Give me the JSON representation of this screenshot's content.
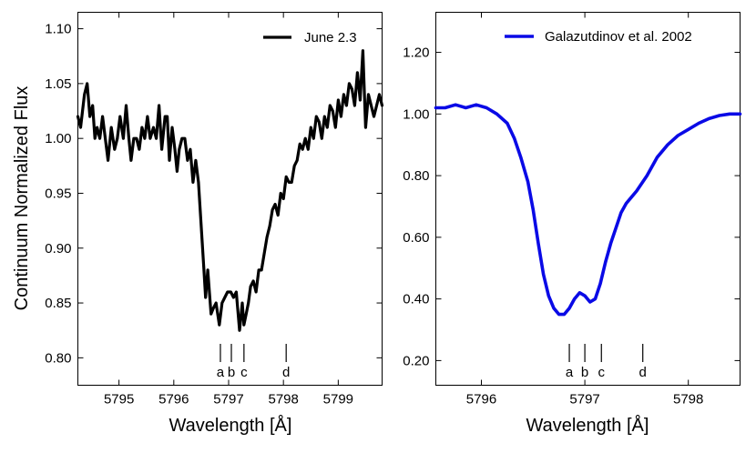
{
  "chart_data": [
    {
      "type": "line",
      "panel": "left",
      "xlabel": "Wavelength [Å]",
      "ylabel": "Continuum Normalized Flux",
      "xlim": [
        5794.25,
        5799.8
      ],
      "ylim": [
        0.775,
        1.115
      ],
      "xticks": [
        5795,
        5796,
        5797,
        5798,
        5799
      ],
      "xtick_labels": [
        "5795",
        "5796",
        "5797",
        "5798",
        "5799"
      ],
      "yticks": [
        0.8,
        0.85,
        0.9,
        0.95,
        1.0,
        1.05,
        1.1
      ],
      "ytick_labels": [
        "0.80",
        "0.85",
        "0.90",
        "0.95",
        "1.00",
        "1.05",
        "1.10"
      ],
      "legend": {
        "label": "June 2.3",
        "color": "#000000",
        "position": "top-right"
      },
      "series": [
        {
          "name": "June 2.3",
          "color": "#000000",
          "x": [
            5794.25,
            5794.3,
            5794.37,
            5794.42,
            5794.47,
            5794.52,
            5794.56,
            5794.6,
            5794.65,
            5794.7,
            5794.75,
            5794.8,
            5794.86,
            5794.92,
            5794.97,
            5795.02,
            5795.08,
            5795.13,
            5795.18,
            5795.22,
            5795.27,
            5795.32,
            5795.37,
            5795.42,
            5795.47,
            5795.52,
            5795.57,
            5795.63,
            5795.68,
            5795.73,
            5795.78,
            5795.84,
            5795.88,
            5795.92,
            5795.97,
            5796.02,
            5796.06,
            5796.1,
            5796.15,
            5796.2,
            5796.25,
            5796.3,
            5796.35,
            5796.4,
            5796.45,
            5796.5,
            5796.55,
            5796.58,
            5796.62,
            5796.65,
            5796.68,
            5796.72,
            5796.77,
            5796.83,
            5796.88,
            5796.93,
            5796.98,
            5797.04,
            5797.09,
            5797.14,
            5797.2,
            5797.25,
            5797.28,
            5797.32,
            5797.36,
            5797.4,
            5797.45,
            5797.5,
            5797.55,
            5797.6,
            5797.65,
            5797.7,
            5797.75,
            5797.8,
            5797.85,
            5797.9,
            5797.95,
            5798.0,
            5798.05,
            5798.1,
            5798.15,
            5798.2,
            5798.25,
            5798.3,
            5798.35,
            5798.4,
            5798.45,
            5798.5,
            5798.55,
            5798.6,
            5798.65,
            5798.7,
            5798.75,
            5798.8,
            5798.85,
            5798.9,
            5798.95,
            5799.0,
            5799.05,
            5799.1,
            5799.15,
            5799.2,
            5799.25,
            5799.3,
            5799.35,
            5799.4,
            5799.45,
            5799.5,
            5799.55,
            5799.6,
            5799.65,
            5799.7,
            5799.75,
            5799.8
          ],
          "y": [
            1.02,
            1.01,
            1.04,
            1.05,
            1.02,
            1.03,
            1.0,
            1.01,
            1.0,
            1.02,
            1.0,
            0.98,
            1.01,
            0.99,
            1.0,
            1.02,
            1.0,
            1.03,
            1.0,
            0.98,
            1.0,
            1.0,
            0.99,
            1.01,
            1.0,
            1.02,
            1.0,
            1.01,
            1.0,
            1.03,
            0.99,
            1.02,
            1.02,
            0.98,
            1.01,
            0.99,
            0.97,
            0.99,
            1.0,
            1.0,
            0.98,
            0.99,
            0.96,
            0.98,
            0.96,
            0.92,
            0.88,
            0.855,
            0.88,
            0.86,
            0.84,
            0.845,
            0.85,
            0.83,
            0.85,
            0.855,
            0.86,
            0.86,
            0.855,
            0.86,
            0.825,
            0.85,
            0.83,
            0.84,
            0.85,
            0.865,
            0.87,
            0.86,
            0.88,
            0.88,
            0.895,
            0.91,
            0.92,
            0.935,
            0.94,
            0.93,
            0.95,
            0.945,
            0.965,
            0.96,
            0.96,
            0.975,
            0.98,
            0.995,
            0.99,
            1.0,
            0.99,
            1.01,
            1.0,
            1.02,
            1.015,
            1.0,
            1.02,
            1.01,
            1.03,
            1.025,
            1.01,
            1.035,
            1.02,
            1.04,
            1.03,
            1.05,
            1.045,
            1.03,
            1.06,
            1.035,
            1.08,
            1.01,
            1.04,
            1.03,
            1.02,
            1.03,
            1.04,
            1.03
          ]
        }
      ],
      "markers": [
        {
          "label": "a",
          "x": 5796.85
        },
        {
          "label": "b",
          "x": 5797.05
        },
        {
          "label": "c",
          "x": 5797.28
        },
        {
          "label": "d",
          "x": 5798.05
        }
      ]
    },
    {
      "type": "line",
      "panel": "right",
      "xlabel": "Wavelength [Å]",
      "ylabel": "",
      "xlim": [
        5795.56,
        5798.5
      ],
      "ylim": [
        0.12,
        1.33
      ],
      "xticks": [
        5796,
        5797,
        5798
      ],
      "xtick_labels": [
        "5796",
        "5797",
        "5798"
      ],
      "yticks": [
        0.2,
        0.4,
        0.6,
        0.8,
        1.0,
        1.2
      ],
      "ytick_labels": [
        "0.20",
        "0.40",
        "0.60",
        "0.80",
        "1.00",
        "1.20"
      ],
      "legend": {
        "label": "Galazutdinov et al. 2002",
        "color": "#0a0ae6",
        "position": "top-right"
      },
      "series": [
        {
          "name": "Galazutdinov et al. 2002",
          "color": "#0a0ae6",
          "x": [
            5795.56,
            5795.65,
            5795.75,
            5795.85,
            5795.95,
            5796.05,
            5796.15,
            5796.25,
            5796.32,
            5796.38,
            5796.45,
            5796.5,
            5796.55,
            5796.6,
            5796.65,
            5796.7,
            5796.75,
            5796.8,
            5796.85,
            5796.9,
            5796.95,
            5797.0,
            5797.05,
            5797.1,
            5797.15,
            5797.2,
            5797.25,
            5797.3,
            5797.35,
            5797.4,
            5797.45,
            5797.5,
            5797.6,
            5797.7,
            5797.8,
            5797.9,
            5798.0,
            5798.1,
            5798.2,
            5798.3,
            5798.4,
            5798.5
          ],
          "y": [
            1.02,
            1.02,
            1.03,
            1.02,
            1.03,
            1.02,
            1.0,
            0.97,
            0.92,
            0.86,
            0.78,
            0.69,
            0.58,
            0.48,
            0.41,
            0.37,
            0.35,
            0.35,
            0.37,
            0.4,
            0.42,
            0.41,
            0.39,
            0.4,
            0.45,
            0.52,
            0.58,
            0.63,
            0.68,
            0.71,
            0.73,
            0.75,
            0.8,
            0.86,
            0.9,
            0.93,
            0.95,
            0.97,
            0.985,
            0.995,
            1.0,
            1.0
          ]
        }
      ],
      "markers": [
        {
          "label": "a",
          "x": 5796.85
        },
        {
          "label": "b",
          "x": 5797.0
        },
        {
          "label": "c",
          "x": 5797.16
        },
        {
          "label": "d",
          "x": 5797.56
        }
      ]
    }
  ]
}
